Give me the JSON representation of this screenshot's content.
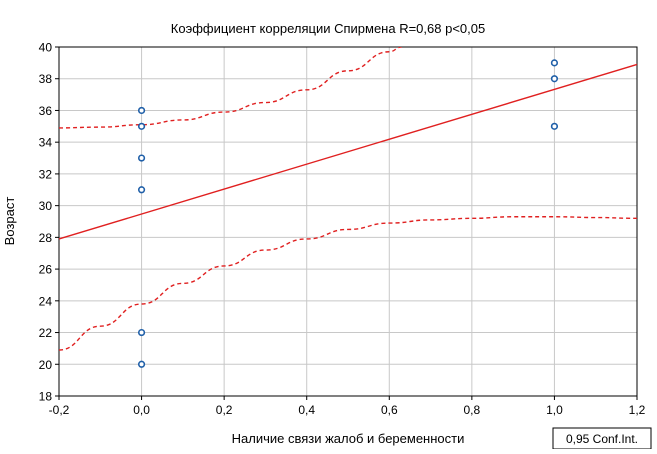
{
  "chart_data": {
    "type": "scatter",
    "title": "Коэффициент корреляции Спирмена R=0,68 p<0,05",
    "xlabel": "Наличие связи жалоб и беременности",
    "ylabel": "Возраст",
    "xlim": [
      -0.2,
      1.2
    ],
    "ylim": [
      18,
      40
    ],
    "x_ticks": [
      -0.2,
      0.0,
      0.2,
      0.4,
      0.6,
      0.8,
      1.0,
      1.2
    ],
    "x_tick_labels": [
      "-0,2",
      "0,0",
      "0,2",
      "0,4",
      "0,6",
      "0,8",
      "1,0",
      "1,2"
    ],
    "y_ticks": [
      18,
      20,
      22,
      24,
      26,
      28,
      30,
      32,
      34,
      36,
      38,
      40
    ],
    "y_tick_labels": [
      "18",
      "20",
      "22",
      "24",
      "26",
      "28",
      "30",
      "32",
      "34",
      "36",
      "38",
      "40"
    ],
    "grid": true,
    "points": [
      {
        "x": 0.0,
        "y": 36
      },
      {
        "x": 0.0,
        "y": 35
      },
      {
        "x": 0.0,
        "y": 33
      },
      {
        "x": 0.0,
        "y": 31
      },
      {
        "x": 0.0,
        "y": 22
      },
      {
        "x": 0.0,
        "y": 20
      },
      {
        "x": 1.0,
        "y": 39
      },
      {
        "x": 1.0,
        "y": 38
      },
      {
        "x": 1.0,
        "y": 35
      }
    ],
    "regression_line": {
      "x": [
        -0.2,
        1.2
      ],
      "y": [
        27.9,
        38.9
      ]
    },
    "confidence_band": {
      "label": "0,95 Conf.Int.",
      "upper": [
        {
          "x": -0.2,
          "y": 34.9
        },
        {
          "x": -0.1,
          "y": 34.95
        },
        {
          "x": 0.0,
          "y": 35.1
        },
        {
          "x": 0.1,
          "y": 35.4
        },
        {
          "x": 0.2,
          "y": 35.9
        },
        {
          "x": 0.3,
          "y": 36.5
        },
        {
          "x": 0.4,
          "y": 37.3
        },
        {
          "x": 0.5,
          "y": 38.5
        },
        {
          "x": 0.6,
          "y": 39.7
        },
        {
          "x": 0.63,
          "y": 40.0
        }
      ],
      "lower": [
        {
          "x": -0.2,
          "y": 20.9
        },
        {
          "x": -0.1,
          "y": 22.4
        },
        {
          "x": 0.0,
          "y": 23.8
        },
        {
          "x": 0.1,
          "y": 25.1
        },
        {
          "x": 0.2,
          "y": 26.2
        },
        {
          "x": 0.3,
          "y": 27.2
        },
        {
          "x": 0.4,
          "y": 27.9
        },
        {
          "x": 0.5,
          "y": 28.5
        },
        {
          "x": 0.6,
          "y": 28.9
        },
        {
          "x": 0.7,
          "y": 29.1
        },
        {
          "x": 0.8,
          "y": 29.2
        },
        {
          "x": 0.9,
          "y": 29.3
        },
        {
          "x": 1.0,
          "y": 29.3
        },
        {
          "x": 1.1,
          "y": 29.25
        },
        {
          "x": 1.2,
          "y": 29.2
        }
      ]
    },
    "colors": {
      "points": "#1f5fa8",
      "regression": "#e02020",
      "confidence": "#e02020",
      "grid": "#c8c8c8",
      "axes": "#000000"
    }
  }
}
